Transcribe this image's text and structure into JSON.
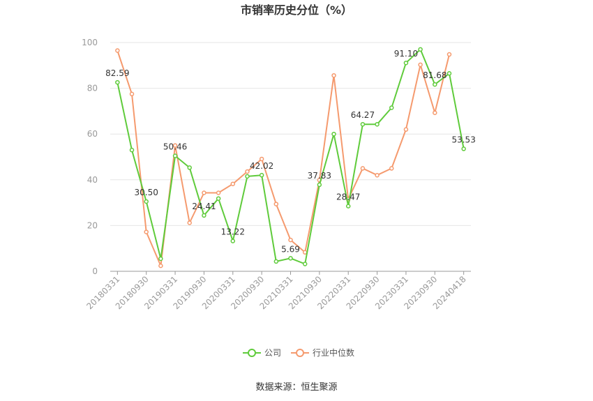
{
  "chart_data": {
    "type": "line",
    "title": "市销率历史分位（%）",
    "xlabel": "",
    "ylabel": "",
    "ylim": [
      0,
      100
    ],
    "y_ticks": [
      0,
      20,
      40,
      60,
      80,
      100
    ],
    "grid": true,
    "legend_position": "bottom",
    "x": [
      "20180331",
      "20180630",
      "20180930",
      "20181231",
      "20190331",
      "20190630",
      "20190930",
      "20191231",
      "20200331",
      "20200630",
      "20200930",
      "20201231",
      "20210331",
      "20210630",
      "20210930",
      "20211231",
      "20220331",
      "20220630",
      "20220930",
      "20221231",
      "20230331",
      "20230630",
      "20230930",
      "20231231",
      "20240418"
    ],
    "x_tick_labels": [
      "20180331",
      "20180930",
      "20190331",
      "20190930",
      "20200331",
      "20200930",
      "20210331",
      "20210930",
      "20220331",
      "20220930",
      "20230331",
      "20230930",
      "20240418"
    ],
    "series": [
      {
        "name": "公司",
        "color": "#5fcb3b",
        "values": [
          82.59,
          53.0,
          30.5,
          5.5,
          50.46,
          45.3,
          24.41,
          31.8,
          13.22,
          41.5,
          42.02,
          4.3,
          5.69,
          3.2,
          37.83,
          60.0,
          28.47,
          64.27,
          64.27,
          71.5,
          91.1,
          97.0,
          81.68,
          86.5,
          53.53
        ],
        "labels": {
          "0": "82.59",
          "2": "30.50",
          "4": "50.46",
          "6": "24.41",
          "8": "13.22",
          "10": "42.02",
          "12": "5.69",
          "14": "37.83",
          "16": "28.47",
          "17": "64.27",
          "20": "91.10",
          "22": "81.68",
          "24": "53.53"
        }
      },
      {
        "name": "行业中位数",
        "color": "#f59a6e",
        "values": [
          96.5,
          77.5,
          17.2,
          2.4,
          55.0,
          21.2,
          34.3,
          34.3,
          38.2,
          43.6,
          49.1,
          29.4,
          13.7,
          8.3,
          39.9,
          85.6,
          31.5,
          45.0,
          42.0,
          45.0,
          62.0,
          90.3,
          69.3,
          94.8,
          null
        ]
      }
    ]
  },
  "source_text": "数据来源：恒生聚源"
}
